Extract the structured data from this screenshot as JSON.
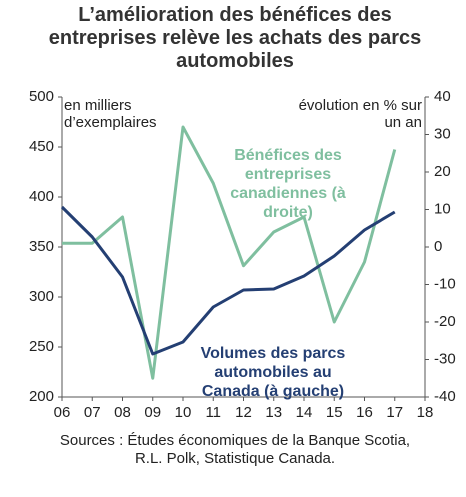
{
  "chart_data": {
    "type": "line",
    "title": "L’amélioration  des bénéfices des entreprises relève les achats des parcs automobiles",
    "y_label": "en milliers d’exemplaires",
    "y2_label": "évolution en % sur un an",
    "source": "Sources : Études économiques de la Banque Scotia, R.L. Polk, Statistique Canada.",
    "x": [
      6,
      7,
      8,
      9,
      10,
      11,
      12,
      13,
      14,
      15,
      16,
      17
    ],
    "xlim": [
      6,
      18
    ],
    "xticks": [
      {
        "value": 6,
        "label": "06"
      },
      {
        "value": 7,
        "label": "07"
      },
      {
        "value": 8,
        "label": "08"
      },
      {
        "value": 9,
        "label": "09"
      },
      10,
      11,
      12,
      13,
      14,
      15,
      16,
      17,
      18
    ],
    "ylim": [
      200,
      500
    ],
    "yticks": [
      200,
      250,
      300,
      350,
      400,
      450,
      500
    ],
    "y2lim": [
      -40,
      40
    ],
    "y2ticks": [
      -40,
      -30,
      -20,
      -10,
      0,
      10,
      20,
      30,
      40
    ],
    "series": [
      {
        "name": "Volumes des parcs automobiles au Canada (à gauche)",
        "color": "#243f73",
        "values": [
          390,
          360,
          320,
          243,
          255,
          290,
          307,
          308,
          321,
          341,
          367,
          385
        ]
      },
      {
        "name": "Bénéfices des entreprises canadiennes (à droite)",
        "color": "#7fbf9f",
        "axis": "y2",
        "values": [
          1,
          1,
          8,
          -35,
          32,
          17,
          -5,
          4,
          8,
          -20,
          -4,
          26
        ]
      }
    ]
  }
}
